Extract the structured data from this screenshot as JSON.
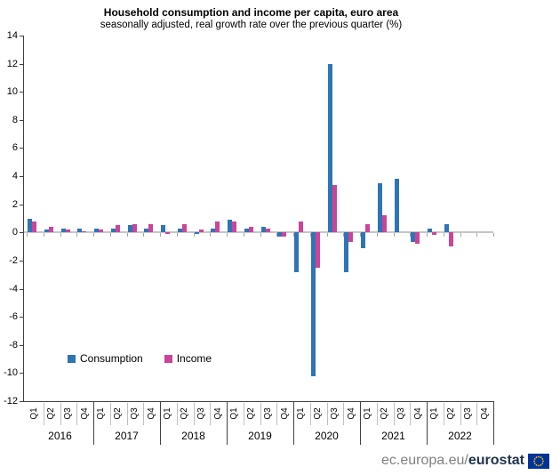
{
  "title": "Household consumption and income per capita, euro area",
  "subtitle": "seasonally adjusted, real growth rate over the previous quarter (%)",
  "legend": {
    "consumption": "Consumption",
    "income": "Income"
  },
  "footer": {
    "url_prefix": "ec.europa.eu/",
    "url_bold": "eurostat"
  },
  "colors": {
    "consumption": "#2E75B6",
    "income": "#CC4499",
    "zero_line": "#C6C6C6",
    "axis_line": "#404040",
    "tick": "#A6A6A6",
    "divider_light": "#BFBFBF",
    "divider_dark": "#404040",
    "footer_gray": "#808080",
    "footer_navy": "#22344E",
    "flag_blue": "#003399",
    "flag_stars": "#FFCC00"
  },
  "chart_data": {
    "type": "bar",
    "title": "Household consumption and income per capita, euro area",
    "subtitle": "seasonally adjusted, real growth rate over the previous quarter (%)",
    "ylabel": "real growth rate over the previous quarter (%)",
    "xlabel": "",
    "ylim": [
      -12,
      14
    ],
    "yticks": [
      14,
      12,
      10,
      8,
      6,
      4,
      2,
      0,
      -2,
      -4,
      -6,
      -8,
      -10,
      -12
    ],
    "grid": false,
    "legend_position": "inside-lower-left",
    "years": [
      "2016",
      "2017",
      "2018",
      "2019",
      "2020",
      "2021",
      "2022"
    ],
    "quarter_labels": [
      "Q1",
      "Q2",
      "Q3",
      "Q4"
    ],
    "categories": [
      "2016-Q1",
      "2016-Q2",
      "2016-Q3",
      "2016-Q4",
      "2017-Q1",
      "2017-Q2",
      "2017-Q3",
      "2017-Q4",
      "2018-Q1",
      "2018-Q2",
      "2018-Q3",
      "2018-Q4",
      "2019-Q1",
      "2019-Q2",
      "2019-Q3",
      "2019-Q4",
      "2020-Q1",
      "2020-Q2",
      "2020-Q3",
      "2020-Q4",
      "2021-Q1",
      "2021-Q2",
      "2021-Q3",
      "2021-Q4",
      "2022-Q1",
      "2022-Q2",
      "2022-Q3",
      "2022-Q4"
    ],
    "series": [
      {
        "name": "Consumption",
        "color": "#2E75B6",
        "values": [
          1.0,
          0.2,
          0.3,
          0.3,
          0.3,
          0.3,
          0.5,
          0.3,
          0.5,
          0.3,
          -0.1,
          0.3,
          0.9,
          0.3,
          0.4,
          -0.3,
          -2.8,
          -10.2,
          12.0,
          -2.8,
          -1.1,
          3.5,
          3.8,
          -0.7,
          0.3,
          0.6,
          null,
          null
        ]
      },
      {
        "name": "Income",
        "color": "#CC4499",
        "values": [
          0.8,
          0.4,
          0.2,
          0.1,
          0.2,
          0.5,
          0.6,
          0.6,
          -0.1,
          0.6,
          0.2,
          0.8,
          0.8,
          0.4,
          0.3,
          -0.3,
          0.8,
          -2.5,
          3.4,
          -0.7,
          0.6,
          1.2,
          0.0,
          -0.8,
          -0.2,
          -1.0,
          null,
          null
        ]
      }
    ]
  }
}
